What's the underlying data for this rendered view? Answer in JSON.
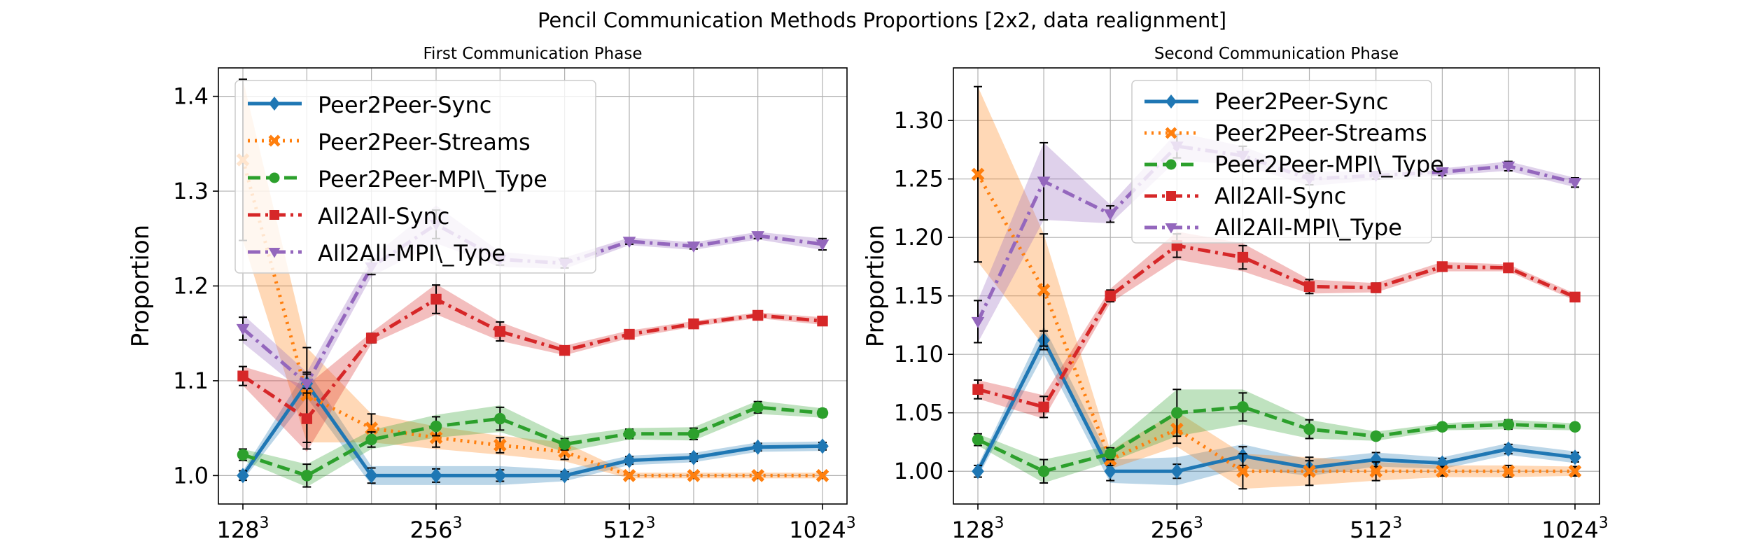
{
  "suptitle": "Pencil Communication Methods Proportions [2x2, data realignment]",
  "colors": {
    "Peer2Peer-Sync": "#1f77b4",
    "Peer2Peer-Streams": "#ff7f0e",
    "Peer2Peer-MPI\\_Type": "#2ca02c",
    "All2All-Sync": "#d62728",
    "All2All-MPI\\_Type": "#9467bd"
  },
  "chart_data": [
    {
      "type": "line",
      "title": "First Communication Phase",
      "xlabel": "",
      "ylabel": "Proportion",
      "x_scale": "log2",
      "x": [
        128,
        161,
        203,
        256,
        322,
        406,
        512,
        645,
        812,
        1024
      ],
      "xticks": [
        {
          "value": 128,
          "base": "128",
          "exp": "3"
        },
        {
          "value": 256,
          "base": "256",
          "exp": "3"
        },
        {
          "value": 512,
          "base": "512",
          "exp": "3"
        },
        {
          "value": 1024,
          "base": "1024",
          "exp": "3"
        }
      ],
      "ylim": [
        0.97,
        1.43
      ],
      "yticks": [
        "1.0",
        "1.1",
        "1.2",
        "1.3",
        "1.4"
      ],
      "grid": true,
      "legend_position": "upper-left",
      "series": [
        {
          "name": "Peer2Peer-Sync",
          "style": "solid",
          "marker": "diamond",
          "values": [
            1.0,
            1.097,
            1.0,
            1.0,
            1.0,
            1.0,
            1.016,
            1.019,
            1.03,
            1.031
          ],
          "err": [
            0.005,
            0.012,
            0.008,
            0.007,
            0.006,
            0.004,
            0.004,
            0.004,
            0.004,
            0.004
          ],
          "band": [
            0.005,
            0.015,
            0.01,
            0.01,
            0.01,
            0.006,
            0.005,
            0.005,
            0.005,
            0.005
          ]
        },
        {
          "name": "Peer2Peer-Streams",
          "style": "dotted",
          "marker": "x",
          "values": [
            1.333,
            1.085,
            1.05,
            1.04,
            1.032,
            1.025,
            1.0,
            1.0,
            1.0,
            1.0
          ],
          "err": [
            0.085,
            0.05,
            0.015,
            0.01,
            0.008,
            0.008,
            0.003,
            0.003,
            0.003,
            0.003
          ],
          "band": [
            0.085,
            0.05,
            0.015,
            0.012,
            0.01,
            0.01,
            0.003,
            0.003,
            0.003,
            0.003
          ]
        },
        {
          "name": "Peer2Peer-MPI\\_Type",
          "style": "dashed",
          "marker": "circle",
          "values": [
            1.022,
            1.0,
            1.038,
            1.052,
            1.06,
            1.033,
            1.044,
            1.044,
            1.072,
            1.066
          ],
          "err": [
            0.006,
            0.012,
            0.008,
            0.01,
            0.012,
            0.006,
            0.005,
            0.006,
            0.006,
            0.004
          ],
          "band": [
            0.006,
            0.012,
            0.01,
            0.012,
            0.014,
            0.008,
            0.006,
            0.007,
            0.007,
            0.005
          ]
        },
        {
          "name": "All2All-Sync",
          "style": "dashdot",
          "marker": "square",
          "values": [
            1.105,
            1.06,
            1.145,
            1.186,
            1.152,
            1.132,
            1.149,
            1.16,
            1.169,
            1.163
          ],
          "err": [
            0.01,
            0.032,
            0.005,
            0.015,
            0.01,
            0.004,
            0.003,
            0.003,
            0.003,
            0.004
          ],
          "band": [
            0.01,
            0.035,
            0.006,
            0.016,
            0.01,
            0.005,
            0.004,
            0.003,
            0.003,
            0.004
          ]
        },
        {
          "name": "All2All-MPI\\_Type",
          "style": "dashdot",
          "marker": "triangle-down",
          "values": [
            1.155,
            1.097,
            1.22,
            1.265,
            1.228,
            1.224,
            1.247,
            1.242,
            1.253,
            1.244
          ],
          "err": [
            0.012,
            0.01,
            0.008,
            0.015,
            0.006,
            0.005,
            0.003,
            0.003,
            0.003,
            0.006
          ],
          "band": [
            0.015,
            0.012,
            0.01,
            0.02,
            0.008,
            0.006,
            0.004,
            0.004,
            0.004,
            0.006
          ]
        }
      ]
    },
    {
      "type": "line",
      "title": "Second Communication Phase",
      "xlabel": "",
      "ylabel": "Proportion",
      "x_scale": "log2",
      "x": [
        128,
        161,
        203,
        256,
        322,
        406,
        512,
        645,
        812,
        1024
      ],
      "xticks": [
        {
          "value": 128,
          "base": "128",
          "exp": "3"
        },
        {
          "value": 256,
          "base": "256",
          "exp": "3"
        },
        {
          "value": 512,
          "base": "512",
          "exp": "3"
        },
        {
          "value": 1024,
          "base": "1024",
          "exp": "3"
        }
      ],
      "ylim": [
        0.972,
        1.345
      ],
      "yticks": [
        "1.00",
        "1.05",
        "1.10",
        "1.15",
        "1.20",
        "1.25",
        "1.30"
      ],
      "grid": true,
      "legend_position": "upper-center",
      "series": [
        {
          "name": "Peer2Peer-Sync",
          "style": "solid",
          "marker": "diamond",
          "values": [
            1.0,
            1.112,
            1.0,
            1.0,
            1.013,
            1.003,
            1.01,
            1.007,
            1.019,
            1.012
          ],
          "err": [
            0.005,
            0.008,
            0.008,
            0.006,
            0.008,
            0.006,
            0.006,
            0.004,
            0.004,
            0.004
          ],
          "band": [
            0.005,
            0.012,
            0.01,
            0.012,
            0.01,
            0.007,
            0.006,
            0.005,
            0.005,
            0.005
          ]
        },
        {
          "name": "Peer2Peer-Streams",
          "style": "dotted",
          "marker": "x",
          "values": [
            1.254,
            1.155,
            1.01,
            1.036,
            1.0,
            1.0,
            1.0,
            1.0,
            1.0,
            1.0
          ],
          "err": [
            0.075,
            0.048,
            0.005,
            0.012,
            0.015,
            0.012,
            0.008,
            0.004,
            0.005,
            0.004
          ],
          "band": [
            0.075,
            0.048,
            0.008,
            0.015,
            0.015,
            0.012,
            0.008,
            0.005,
            0.005,
            0.004
          ]
        },
        {
          "name": "Peer2Peer-MPI\\_Type",
          "style": "dashed",
          "marker": "circle",
          "values": [
            1.027,
            1.0,
            1.015,
            1.05,
            1.055,
            1.036,
            1.03,
            1.038,
            1.04,
            1.038
          ],
          "err": [
            0.005,
            0.01,
            0.005,
            0.02,
            0.012,
            0.008,
            0.003,
            0.003,
            0.004,
            0.003
          ],
          "band": [
            0.005,
            0.01,
            0.007,
            0.02,
            0.015,
            0.008,
            0.004,
            0.003,
            0.004,
            0.003
          ]
        },
        {
          "name": "All2All-Sync",
          "style": "dashdot",
          "marker": "square",
          "values": [
            1.07,
            1.055,
            1.15,
            1.193,
            1.183,
            1.158,
            1.157,
            1.175,
            1.174,
            1.149
          ],
          "err": [
            0.008,
            0.009,
            0.005,
            0.01,
            0.01,
            0.006,
            0.004,
            0.003,
            0.003,
            0.003
          ],
          "band": [
            0.008,
            0.01,
            0.006,
            0.012,
            0.012,
            0.006,
            0.004,
            0.004,
            0.003,
            0.003
          ]
        },
        {
          "name": "All2All-MPI\\_Type",
          "style": "dashdot",
          "marker": "triangle-down",
          "values": [
            1.128,
            1.248,
            1.22,
            1.278,
            1.27,
            1.25,
            1.253,
            1.256,
            1.261,
            1.247
          ],
          "err": [
            0.018,
            0.033,
            0.007,
            0.01,
            0.008,
            0.005,
            0.003,
            0.003,
            0.004,
            0.004
          ],
          "band": [
            0.018,
            0.033,
            0.008,
            0.012,
            0.008,
            0.006,
            0.004,
            0.003,
            0.004,
            0.004
          ]
        }
      ]
    }
  ]
}
